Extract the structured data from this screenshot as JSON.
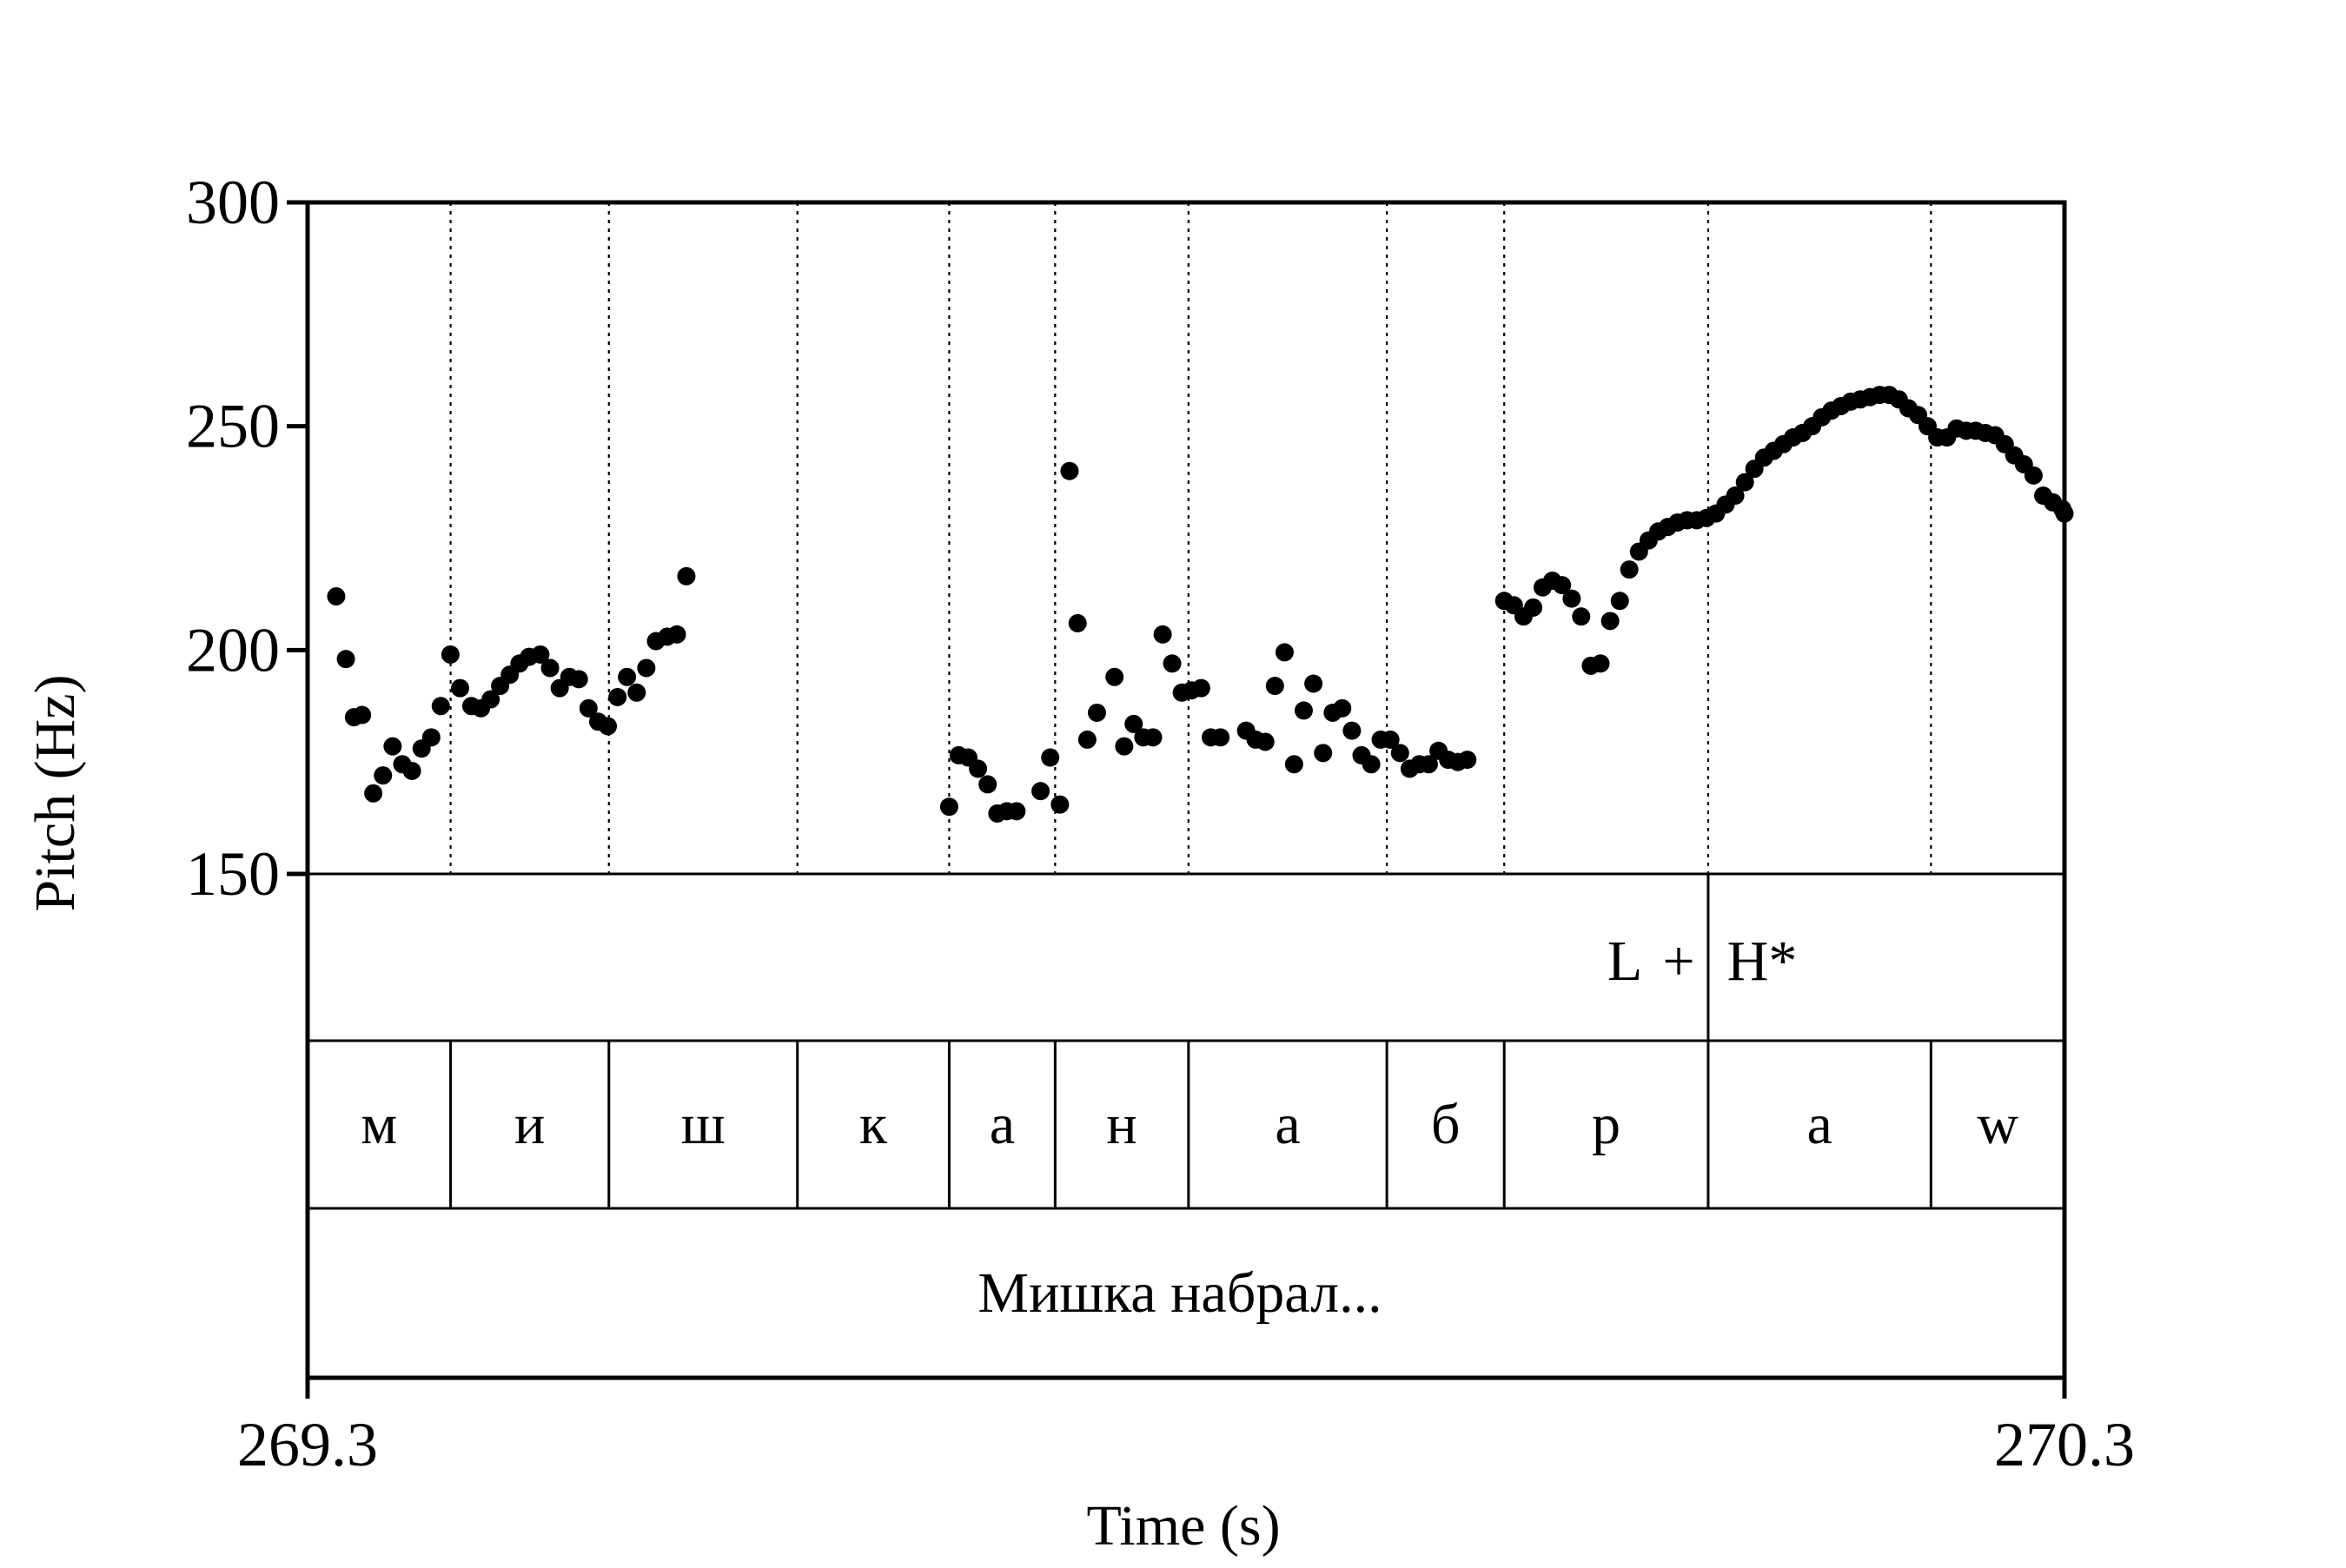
{
  "chart_data": {
    "type": "scatter",
    "xlabel": "Time (s)",
    "ylabel": "Pitch (Hz)",
    "xlim": [
      269.3,
      270.3
    ],
    "ylim": [
      150,
      300
    ],
    "x_tick_labels": [
      "269.3",
      "270.3"
    ],
    "y_ticks": [
      150,
      200,
      250,
      300
    ],
    "grid": false,
    "segment_boundaries": [
      269.3814,
      269.4715,
      269.5788,
      269.6652,
      269.7255,
      269.8014,
      269.9143,
      269.9811,
      270.0972,
      270.224,
      270.3
    ],
    "pitch_points": [
      [
        269.3163,
        212
      ],
      [
        269.3218,
        198
      ],
      [
        269.3264,
        185
      ],
      [
        269.331,
        185.5
      ],
      [
        269.3374,
        168
      ],
      [
        269.3429,
        172
      ],
      [
        269.3484,
        178.5
      ],
      [
        269.3539,
        174.5
      ],
      [
        269.3594,
        173
      ],
      [
        269.3649,
        178
      ],
      [
        269.3704,
        180.5
      ],
      [
        269.3758,
        187.5
      ],
      [
        269.3813,
        199
      ],
      [
        269.3868,
        191.5
      ],
      [
        269.3932,
        187.5
      ],
      [
        269.3987,
        187
      ],
      [
        269.4042,
        189
      ],
      [
        269.4096,
        192
      ],
      [
        269.4151,
        194.5
      ],
      [
        269.4206,
        197
      ],
      [
        269.4261,
        198.5
      ],
      [
        269.4325,
        199
      ],
      [
        269.438,
        196
      ],
      [
        269.4435,
        191.5
      ],
      [
        269.449,
        194
      ],
      [
        269.4544,
        193.5
      ],
      [
        269.4599,
        187
      ],
      [
        269.4654,
        184
      ],
      [
        269.4709,
        183
      ],
      [
        269.4764,
        189.5
      ],
      [
        269.4818,
        194
      ],
      [
        269.4873,
        190.5
      ],
      [
        269.4928,
        196
      ],
      [
        269.4983,
        202
      ],
      [
        269.5047,
        203
      ],
      [
        269.5102,
        203.5
      ],
      [
        269.5156,
        216.5
      ],
      [
        269.6652,
        165
      ],
      [
        269.6706,
        176.5
      ],
      [
        269.6761,
        176
      ],
      [
        269.6816,
        173.5
      ],
      [
        269.6871,
        170
      ],
      [
        269.6926,
        163.5
      ],
      [
        269.698,
        164
      ],
      [
        269.7035,
        164
      ],
      [
        269.7172,
        168.5
      ],
      [
        269.7227,
        176
      ],
      [
        269.7282,
        165.5
      ],
      [
        269.7337,
        240
      ],
      [
        269.7383,
        206
      ],
      [
        269.7438,
        180
      ],
      [
        269.7493,
        186
      ],
      [
        269.7593,
        194
      ],
      [
        269.7648,
        178.5
      ],
      [
        269.7702,
        183.5
      ],
      [
        269.7757,
        180.5
      ],
      [
        269.7812,
        180.5
      ],
      [
        269.7867,
        203.5
      ],
      [
        269.7921,
        197
      ],
      [
        269.7976,
        190.5
      ],
      [
        269.8031,
        191
      ],
      [
        269.8086,
        191.5
      ],
      [
        269.8141,
        180.5
      ],
      [
        269.8196,
        180.5
      ],
      [
        269.8342,
        182
      ],
      [
        269.8396,
        180
      ],
      [
        269.8451,
        179.5
      ],
      [
        269.8506,
        192
      ],
      [
        269.8561,
        199.5
      ],
      [
        269.8615,
        174.5
      ],
      [
        269.867,
        186.5
      ],
      [
        269.8725,
        192.5
      ],
      [
        269.878,
        177
      ],
      [
        269.8835,
        186
      ],
      [
        269.8889,
        187
      ],
      [
        269.8944,
        182
      ],
      [
        269.8999,
        176.5
      ],
      [
        269.9054,
        174.5
      ],
      [
        269.9108,
        180
      ],
      [
        269.9163,
        180
      ],
      [
        269.9218,
        177
      ],
      [
        269.9273,
        173.5
      ],
      [
        269.9328,
        174.5
      ],
      [
        269.9382,
        174.5
      ],
      [
        269.9437,
        177.5
      ],
      [
        269.9492,
        175.5
      ],
      [
        269.9547,
        175
      ],
      [
        269.9601,
        175.5
      ],
      [
        269.9811,
        211
      ],
      [
        269.9866,
        210
      ],
      [
        269.9921,
        207.5
      ],
      [
        269.9976,
        209.5
      ],
      [
        270.003,
        214
      ],
      [
        270.0085,
        215.5
      ],
      [
        270.014,
        214.5
      ],
      [
        270.0195,
        211.5
      ],
      [
        270.0249,
        207.5
      ],
      [
        270.0304,
        196.5
      ],
      [
        270.0359,
        197
      ],
      [
        270.0414,
        206.5
      ],
      [
        270.0469,
        211
      ],
      [
        270.0523,
        218
      ],
      [
        270.0578,
        222
      ],
      [
        270.0633,
        224.5
      ],
      [
        270.0688,
        226.5
      ],
      [
        270.0742,
        227.5
      ],
      [
        270.0797,
        228.5
      ],
      [
        270.0852,
        229
      ],
      [
        270.0907,
        229
      ],
      [
        270.0962,
        229.5
      ],
      [
        270.1016,
        230.5
      ],
      [
        270.1071,
        232.5
      ],
      [
        270.1126,
        234.5
      ],
      [
        270.1181,
        237.5
      ],
      [
        270.1235,
        240.5
      ],
      [
        270.129,
        243
      ],
      [
        270.1345,
        244.5
      ],
      [
        270.14,
        246
      ],
      [
        270.1455,
        247.5
      ],
      [
        270.1509,
        248.5
      ],
      [
        270.1564,
        250
      ],
      [
        270.1619,
        252
      ],
      [
        270.1674,
        253.5
      ],
      [
        270.1728,
        254.5
      ],
      [
        270.1783,
        255.5
      ],
      [
        270.1838,
        256
      ],
      [
        270.1893,
        256.5
      ],
      [
        270.1948,
        257
      ],
      [
        270.2002,
        257
      ],
      [
        270.2057,
        256
      ],
      [
        270.2112,
        254
      ],
      [
        270.2167,
        252.5
      ],
      [
        270.2221,
        250
      ],
      [
        270.2276,
        247.5
      ],
      [
        270.2331,
        247.5
      ],
      [
        270.2386,
        249.5
      ],
      [
        270.2441,
        249
      ],
      [
        270.2495,
        249
      ],
      [
        270.255,
        248.5
      ],
      [
        270.2605,
        248
      ],
      [
        270.266,
        246
      ],
      [
        270.2714,
        243.5
      ],
      [
        270.2769,
        241.5
      ],
      [
        270.2824,
        239
      ],
      [
        270.2879,
        234.5
      ],
      [
        270.2934,
        233
      ],
      [
        270.2988,
        231.5
      ],
      [
        270.3,
        230.5
      ]
    ],
    "tone_tier": {
      "boundary_time": 270.0972,
      "label_left": "L",
      "label_plus": "+",
      "label_right": "H*"
    },
    "segments": [
      {
        "label": "м",
        "start": 269.3,
        "end": 269.3814
      },
      {
        "label": "и",
        "start": 269.3814,
        "end": 269.4715
      },
      {
        "label": "ш",
        "start": 269.4715,
        "end": 269.5788
      },
      {
        "label": "к",
        "start": 269.5788,
        "end": 269.6652
      },
      {
        "label": "а",
        "start": 269.6652,
        "end": 269.7255
      },
      {
        "label": "н",
        "start": 269.7255,
        "end": 269.8014
      },
      {
        "label": "а",
        "start": 269.8014,
        "end": 269.9143
      },
      {
        "label": "б",
        "start": 269.9143,
        "end": 269.9811
      },
      {
        "label": "р",
        "start": 269.9811,
        "end": 270.0972
      },
      {
        "label": "а",
        "start": 270.0972,
        "end": 270.224
      },
      {
        "label": "w",
        "start": 270.224,
        "end": 270.3
      }
    ],
    "sentence": "Мишка набрал..."
  }
}
